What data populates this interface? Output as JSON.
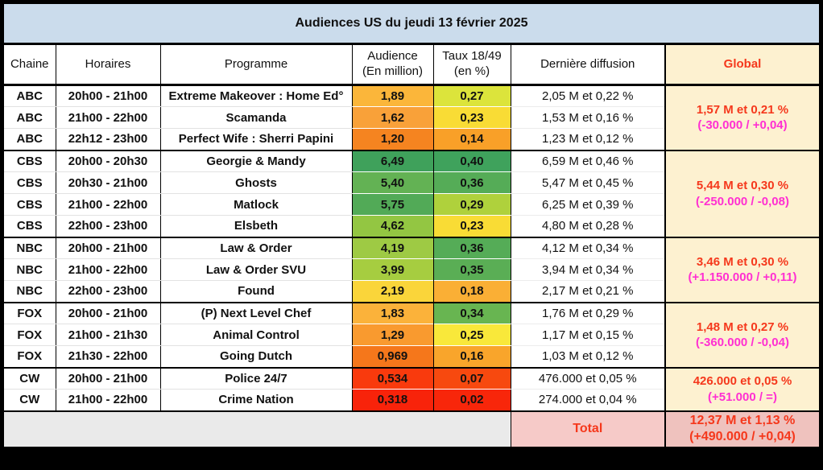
{
  "title": "Audiences US du jeudi 13 février 2025",
  "header": {
    "chaine": "Chaine",
    "horaires": "Horaires",
    "programme": "Programme",
    "audience_l1": "Audience",
    "audience_l2": "(En million)",
    "taux_l1": "Taux 18/49",
    "taux_l2": "(en %)",
    "derniere": "Dernière diffusion",
    "global": "Global"
  },
  "groups": [
    {
      "network": "ABC",
      "global_line1": "1,57 M et 0,21 %",
      "global_line2": "(-30.000 / +0,04)",
      "rows": [
        {
          "horaires": "20h00 - 21h00",
          "programme": "Extreme Makeover : Home Ed°",
          "audience": "1,89",
          "audience_color": "#FBB63A",
          "taux": "0,27",
          "taux_color": "#DCE43B",
          "derniere": "2,05 M et 0,22 %"
        },
        {
          "horaires": "21h00 - 22h00",
          "programme": "Scamanda",
          "audience": "1,62",
          "audience_color": "#F9A139",
          "taux": "0,23",
          "taux_color": "#F9DC35",
          "derniere": "1,53 M et 0,16 %"
        },
        {
          "horaires": "22h12 - 23h00",
          "programme": "Perfect Wife : Sherri Papini",
          "audience": "1,20",
          "audience_color": "#F58420",
          "taux": "0,14",
          "taux_color": "#F9A028",
          "derniere": "1,23 M et 0,12 %"
        }
      ]
    },
    {
      "network": "CBS",
      "global_line1": "5,44 M et 0,30 %",
      "global_line2": "(-250.000 / -0,08)",
      "rows": [
        {
          "horaires": "20h00 - 20h30",
          "programme": "Georgie & Mandy",
          "audience": "6,49",
          "audience_color": "#3FA15B",
          "taux": "0,40",
          "taux_color": "#3FA25C",
          "derniere": "6,59 M et 0,46 %"
        },
        {
          "horaires": "20h30 - 21h00",
          "programme": "Ghosts",
          "audience": "5,40",
          "audience_color": "#63B254",
          "taux": "0,36",
          "taux_color": "#55AC57",
          "derniere": "5,47 M et 0,45 %"
        },
        {
          "horaires": "21h00 - 22h00",
          "programme": "Matlock",
          "audience": "5,75",
          "audience_color": "#52AA57",
          "taux": "0,29",
          "taux_color": "#AFD13C",
          "derniere": "6,25 M et 0,39 %"
        },
        {
          "horaires": "22h00 - 23h00",
          "programme": "Elsbeth",
          "audience": "4,62",
          "audience_color": "#93C642",
          "taux": "0,23",
          "taux_color": "#F9DC35",
          "derniere": "4,80 M et 0,28 %"
        }
      ]
    },
    {
      "network": "NBC",
      "global_line1": "3,46 M et 0,30 %",
      "global_line2": "(+1.150.000 / +0,11)",
      "rows": [
        {
          "horaires": "20h00 - 21h00",
          "programme": "Law & Order",
          "audience": "4,19",
          "audience_color": "#9ECA44",
          "taux": "0,36",
          "taux_color": "#55AC57",
          "derniere": "4,12 M et 0,34 %"
        },
        {
          "horaires": "21h00 - 22h00",
          "programme": "Law & Order SVU",
          "audience": "3,99",
          "audience_color": "#A6CD40",
          "taux": "0,35",
          "taux_color": "#5AAE55",
          "derniere": "3,94 M et 0,34 %"
        },
        {
          "horaires": "22h00 - 23h00",
          "programme": "Found",
          "audience": "2,19",
          "audience_color": "#FAD53A",
          "taux": "0,18",
          "taux_color": "#FAAF35",
          "derniere": "2,17 M et 0,21 %"
        }
      ]
    },
    {
      "network": "FOX",
      "global_line1": "1,48 M et 0,27 %",
      "global_line2": "(-360.000 / -0,04)",
      "rows": [
        {
          "horaires": "20h00 - 21h00",
          "programme": "(P) Next Level Chef",
          "audience": "1,83",
          "audience_color": "#FBB23A",
          "taux": "0,34",
          "taux_color": "#68B551",
          "derniere": "1,76 M et 0,29 %"
        },
        {
          "horaires": "21h00 - 21h30",
          "programme": "Animal Control",
          "audience": "1,29",
          "audience_color": "#F99A2F",
          "taux": "0,25",
          "taux_color": "#F9E83A",
          "derniere": "1,17 M et 0,15 %"
        },
        {
          "horaires": "21h30 - 22h00",
          "programme": "Going Dutch",
          "audience": "0,969",
          "audience_color": "#F5771B",
          "taux": "0,16",
          "taux_color": "#F9A52B",
          "derniere": "1,03 M et 0,12 %"
        }
      ]
    },
    {
      "network": "CW",
      "global_line1": "426.000 et 0,05 %",
      "global_line2": "(+51.000 / =)",
      "rows": [
        {
          "horaires": "20h00 - 21h00",
          "programme": "Police 24/7",
          "audience": "0,534",
          "audience_color": "#F93A0D",
          "taux": "0,07",
          "taux_color": "#F7490F",
          "derniere": "476.000 et 0,05 %"
        },
        {
          "horaires": "21h00 - 22h00",
          "programme": "Crime Nation",
          "audience": "0,318",
          "audience_color": "#F8230A",
          "taux": "0,02",
          "taux_color": "#F8260A",
          "derniere": "274.000 et 0,04 %"
        }
      ]
    }
  ],
  "total": {
    "label": "Total",
    "line1": "12,37 M et 1,13 %",
    "line2": "(+490.000 / +0,04)"
  },
  "colors": {
    "title_bg": "#CBDCEC",
    "global_bg": "#FDF1D0",
    "global_text": "#F5381C",
    "delta_text": "#FF2FD2",
    "total_label_bg": "#F6CAC8",
    "total_value_bg": "#EFC2BE",
    "spacer_bg": "#EAEAEA"
  }
}
